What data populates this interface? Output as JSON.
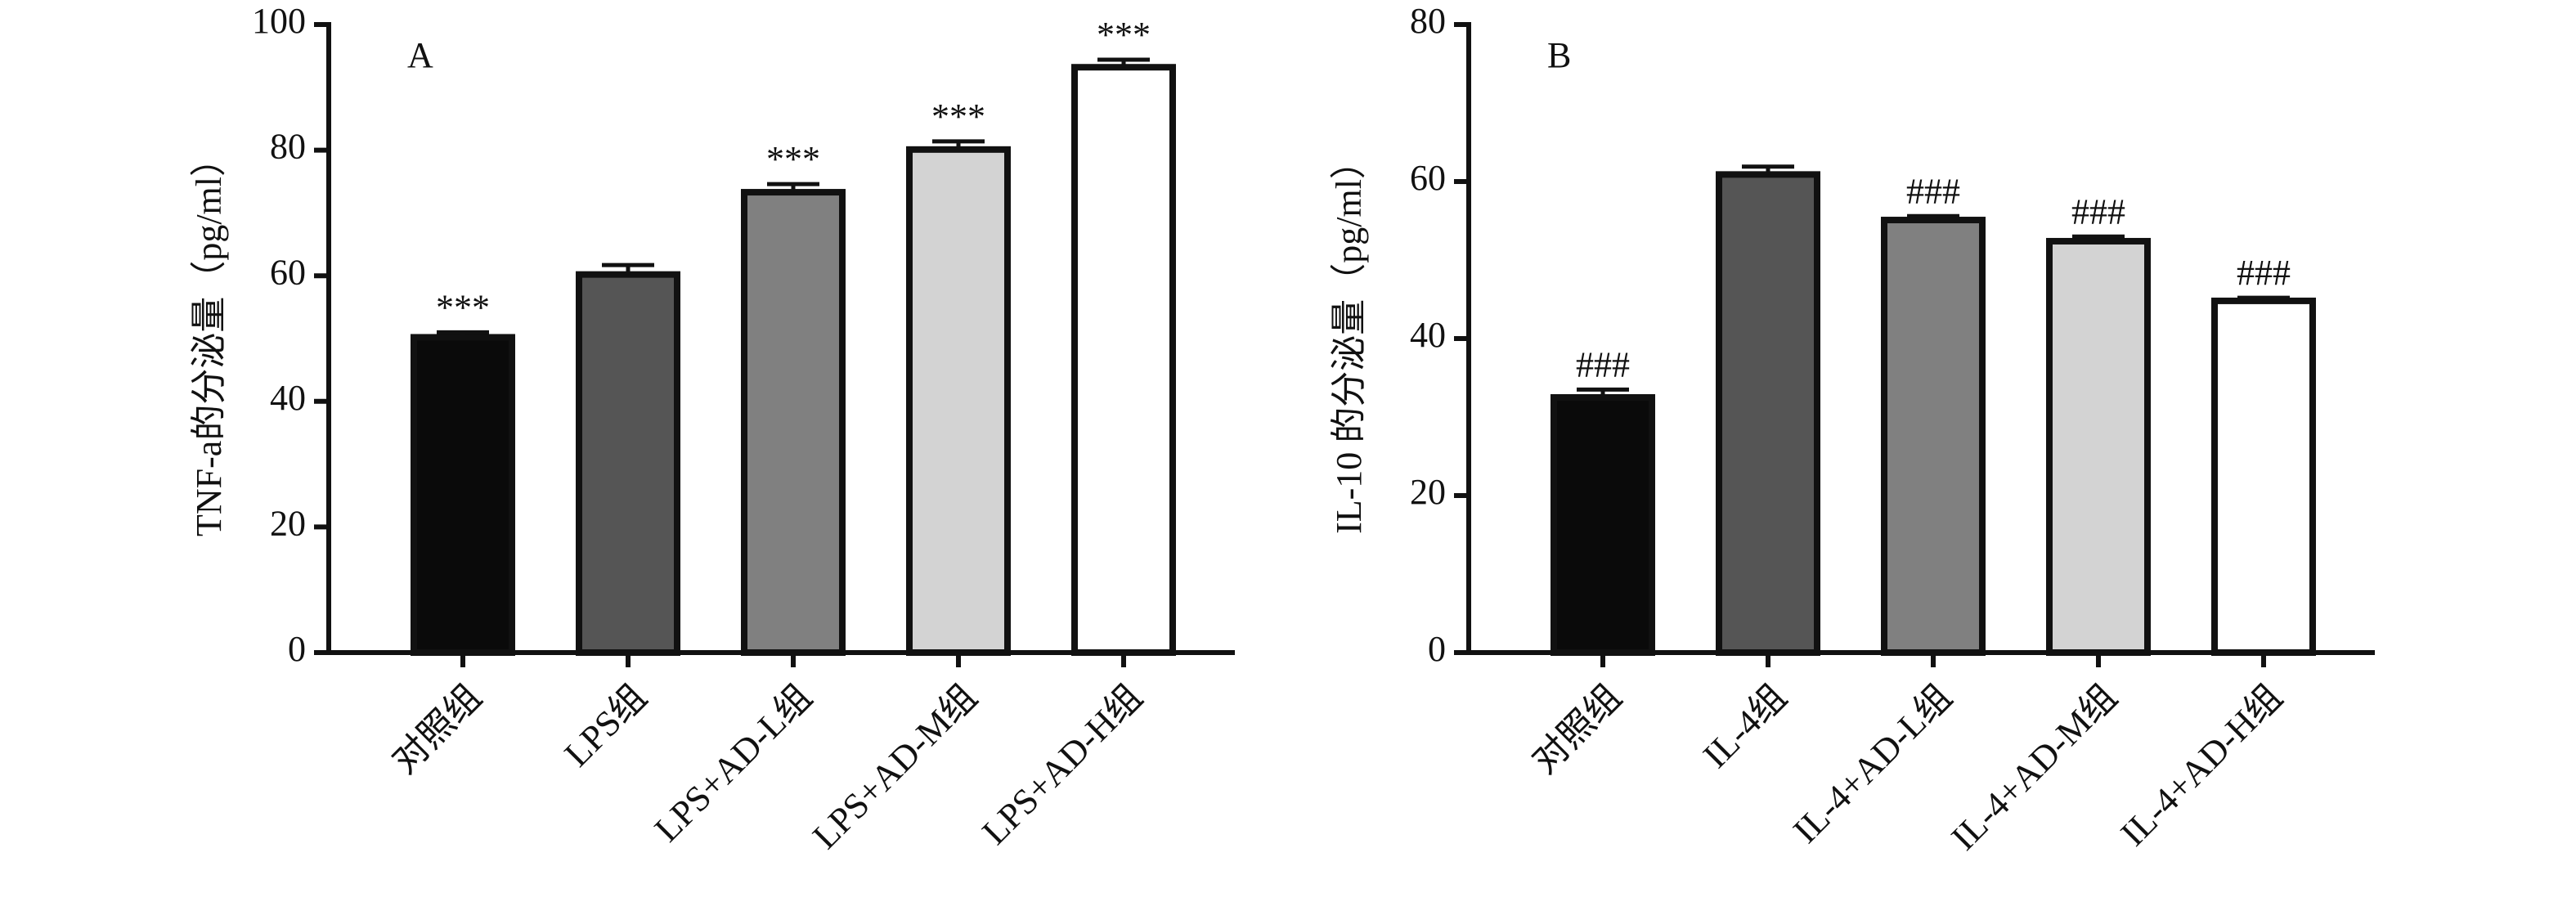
{
  "chart_data": [
    {
      "type": "bar",
      "panel_label": "A",
      "y_label": "TNF-a的分泌量（pg/ml）",
      "categories": [
        "对照组",
        "LPS组",
        "LPS+AD-L组",
        "LPS+AD-M组",
        "LPS+AD-H组"
      ],
      "values": [
        50.2,
        60.2,
        73.3,
        80.1,
        93.2
      ],
      "errors": [
        0.8,
        1.5,
        1.3,
        1.3,
        1.2
      ],
      "annotations": [
        "***",
        null,
        "***",
        "***",
        "***"
      ],
      "colors": [
        "#0a0a0a",
        "#555555",
        "#808080",
        "#d3d3d3",
        "#ffffff"
      ],
      "ylim": [
        0,
        100
      ],
      "yticks": [
        0,
        20,
        40,
        60,
        80,
        100
      ]
    },
    {
      "type": "bar",
      "panel_label": "B",
      "y_label": "IL-10 的分泌量（pg/ml）",
      "categories": [
        "对照组",
        "IL-4组",
        "IL-4+AD-L组",
        "IL-4+AD-M组",
        "IL-4+AD-H组"
      ],
      "values": [
        32.5,
        60.9,
        55.1,
        52.4,
        44.8
      ],
      "errors": [
        1.0,
        1.0,
        0.5,
        0.6,
        0.4
      ],
      "annotations": [
        "###",
        null,
        "###",
        "###",
        "###"
      ],
      "colors": [
        "#0a0a0a",
        "#555555",
        "#808080",
        "#d3d3d3",
        "#ffffff"
      ],
      "ylim": [
        0,
        80
      ],
      "yticks": [
        0,
        20,
        40,
        60,
        80
      ]
    }
  ]
}
